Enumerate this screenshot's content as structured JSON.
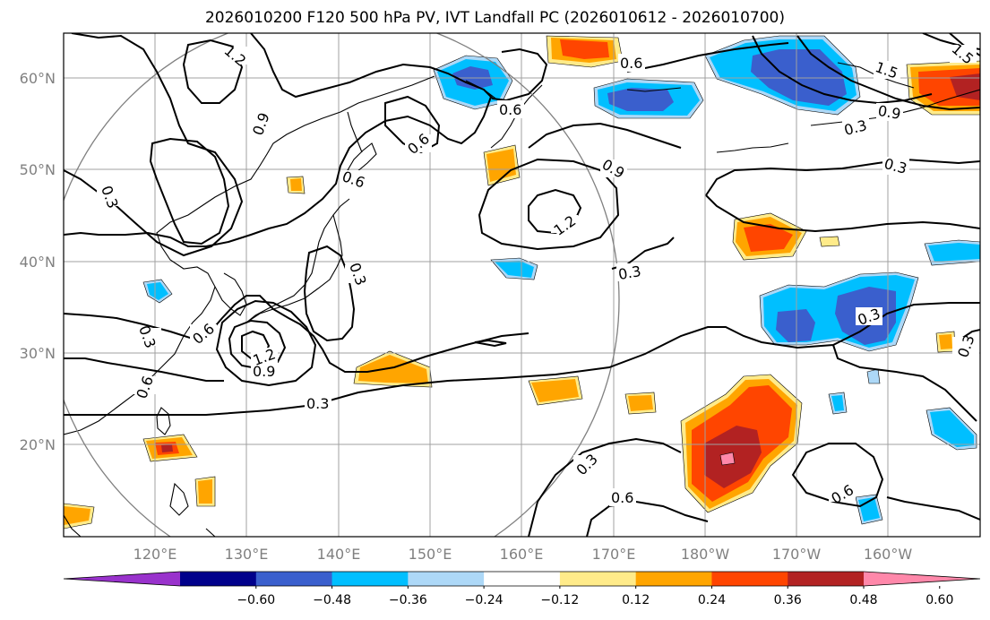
{
  "title": "2026010200 F120 500 hPa PV, IVT Landfall PC (2026010612 - 2026010700)",
  "map": {
    "lon_ticks": [
      "120°E",
      "130°E",
      "140°E",
      "150°E",
      "160°E",
      "170°E",
      "180°W",
      "170°W",
      "160°W"
    ],
    "lat_ticks": [
      "60°N",
      "50°N",
      "40°N",
      "30°N",
      "20°N"
    ],
    "contour_labels": [
      "1.2",
      "0.9",
      "0.6",
      "0.6",
      "0.6",
      "0.3",
      "0.3",
      "0.6",
      "0.9",
      "1.2",
      "0.3",
      "0.3",
      "0.9",
      "1.5",
      "1.5",
      "0.3",
      "0.3",
      "0.3",
      "0.3",
      "0.6",
      "0.9",
      "1.2",
      "0.6",
      "0.3",
      "0.6",
      "0.3",
      "0.6"
    ],
    "colors": {
      "grid": "#a0a0a0",
      "coast": "#000000",
      "contour": "#000000",
      "circle": "#808080"
    }
  },
  "colorbar": {
    "levels": [
      "−0.60",
      "−0.48",
      "−0.36",
      "−0.24",
      "−0.12",
      "0.12",
      "0.24",
      "0.36",
      "0.48",
      "0.60"
    ],
    "colors": [
      "#9932cc",
      "#00008b",
      "#3a5fcd",
      "#00bfff",
      "#add8f7",
      "#ffffff",
      "#ffeb8a",
      "#ffa500",
      "#ff4500",
      "#b22222",
      "#ff88aa"
    ]
  }
}
